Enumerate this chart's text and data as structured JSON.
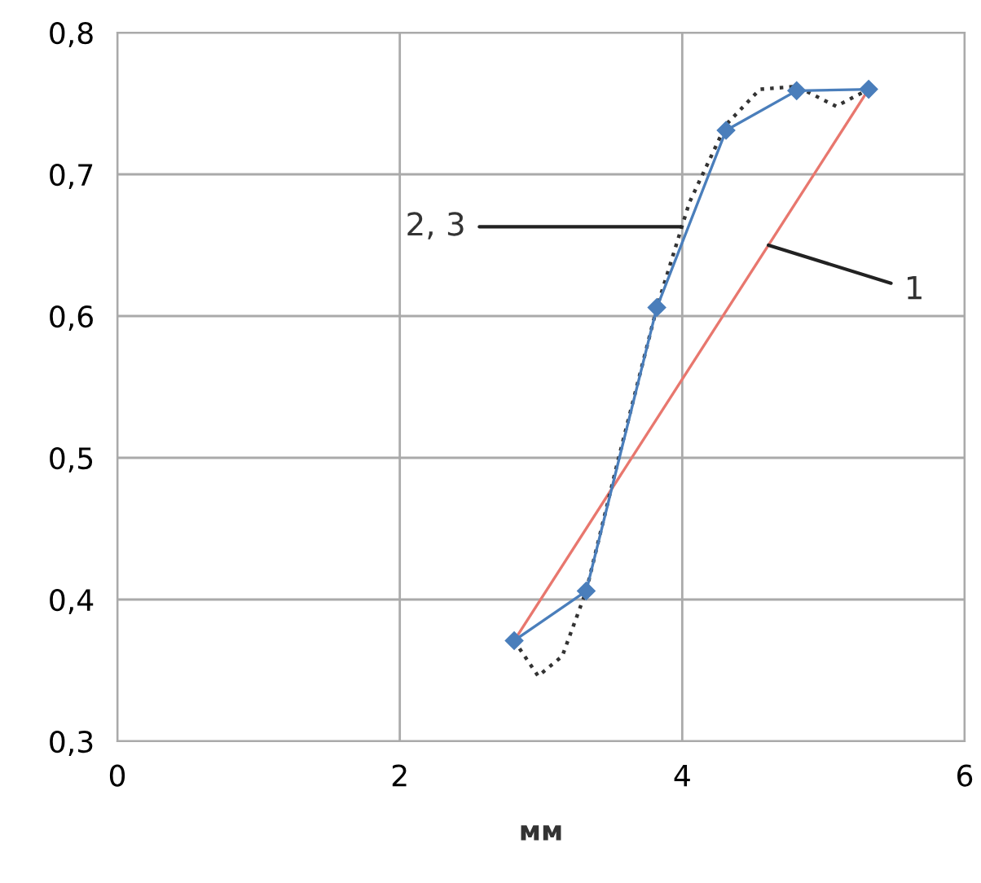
{
  "chart_data": {
    "type": "line",
    "xlabel": "мм",
    "xlim": [
      0,
      6
    ],
    "ylim": [
      0.3,
      0.8
    ],
    "xticks": [
      0,
      2,
      4,
      6
    ],
    "yticks": [
      {
        "value": 0.3,
        "label": "0,3"
      },
      {
        "value": 0.4,
        "label": "0,4"
      },
      {
        "value": 0.5,
        "label": "0,5"
      },
      {
        "value": 0.6,
        "label": "0,6"
      },
      {
        "value": 0.7,
        "label": "0,7"
      },
      {
        "value": 0.8,
        "label": "0,8"
      }
    ],
    "grid": true,
    "series": [
      {
        "color": "#e8776e",
        "x": [
          2.81,
          5.32
        ],
        "values": [
          0.371,
          0.76
        ],
        "marker": "none",
        "line_style": "solid"
      },
      {
        "color": "#333333",
        "x": [
          2.81,
          2.98,
          3.15,
          3.32,
          3.55,
          3.82,
          4.05,
          4.31,
          4.55,
          4.81,
          5.09,
          5.32
        ],
        "values": [
          0.371,
          0.346,
          0.36,
          0.406,
          0.5,
          0.606,
          0.68,
          0.735,
          0.76,
          0.762,
          0.748,
          0.76
        ],
        "marker": "none",
        "line_style": "dotted"
      },
      {
        "color": "#4a7ebb",
        "x": [
          2.81,
          3.32,
          3.82,
          4.31,
          4.81,
          5.32
        ],
        "values": [
          0.371,
          0.406,
          0.606,
          0.731,
          0.759,
          0.76
        ],
        "marker": "diamond",
        "line_style": "solid"
      }
    ],
    "annotations": [
      {
        "text": "2, 3",
        "x": 3.99,
        "y": 0.663
      },
      {
        "text": "1",
        "x": 4.61,
        "y": 0.65
      }
    ]
  }
}
